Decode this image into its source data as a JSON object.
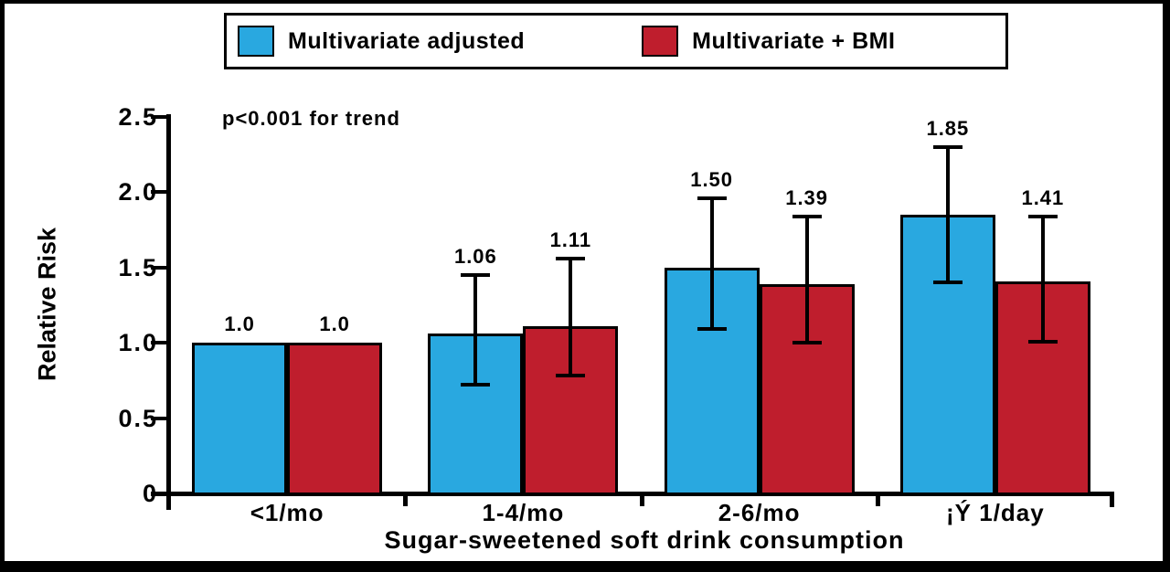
{
  "chart_data": {
    "type": "bar",
    "title": "",
    "xlabel": "Sugar-sweetened soft drink consumption",
    "ylabel": "Relative Risk",
    "annotation": "p<0.001 for trend",
    "categories": [
      "<1/mo",
      "1-4/mo",
      "2-6/mo",
      "¡Ý 1/day"
    ],
    "ylim": [
      0,
      2.5
    ],
    "y_ticks": [
      {
        "v": 2.5,
        "label": "2.5"
      },
      {
        "v": 2.0,
        "label": "2.0"
      },
      {
        "v": 1.5,
        "label": "1.5"
      },
      {
        "v": 1.0,
        "label": "1.0"
      },
      {
        "v": 0.5,
        "label": "0.5"
      },
      {
        "v": 0,
        "label": "0"
      }
    ],
    "grid": false,
    "legend_position": "top",
    "series": [
      {
        "name": "Multivariate adjusted",
        "color": "#29A8E0",
        "values": [
          1.0,
          1.06,
          1.5,
          1.85
        ],
        "labels": [
          "1.0",
          "1.06",
          "1.50",
          "1.85"
        ],
        "err_low": [
          null,
          0.72,
          1.09,
          1.4
        ],
        "err_high": [
          null,
          1.45,
          1.96,
          2.3
        ]
      },
      {
        "name": "Multivariate + BMI",
        "color": "#BF1E2D",
        "values": [
          1.0,
          1.11,
          1.39,
          1.41
        ],
        "labels": [
          "1.0",
          "1.11",
          "1.39",
          "1.41"
        ],
        "err_low": [
          null,
          0.78,
          1.0,
          1.01
        ],
        "err_high": [
          null,
          1.56,
          1.84,
          1.84
        ]
      }
    ]
  }
}
